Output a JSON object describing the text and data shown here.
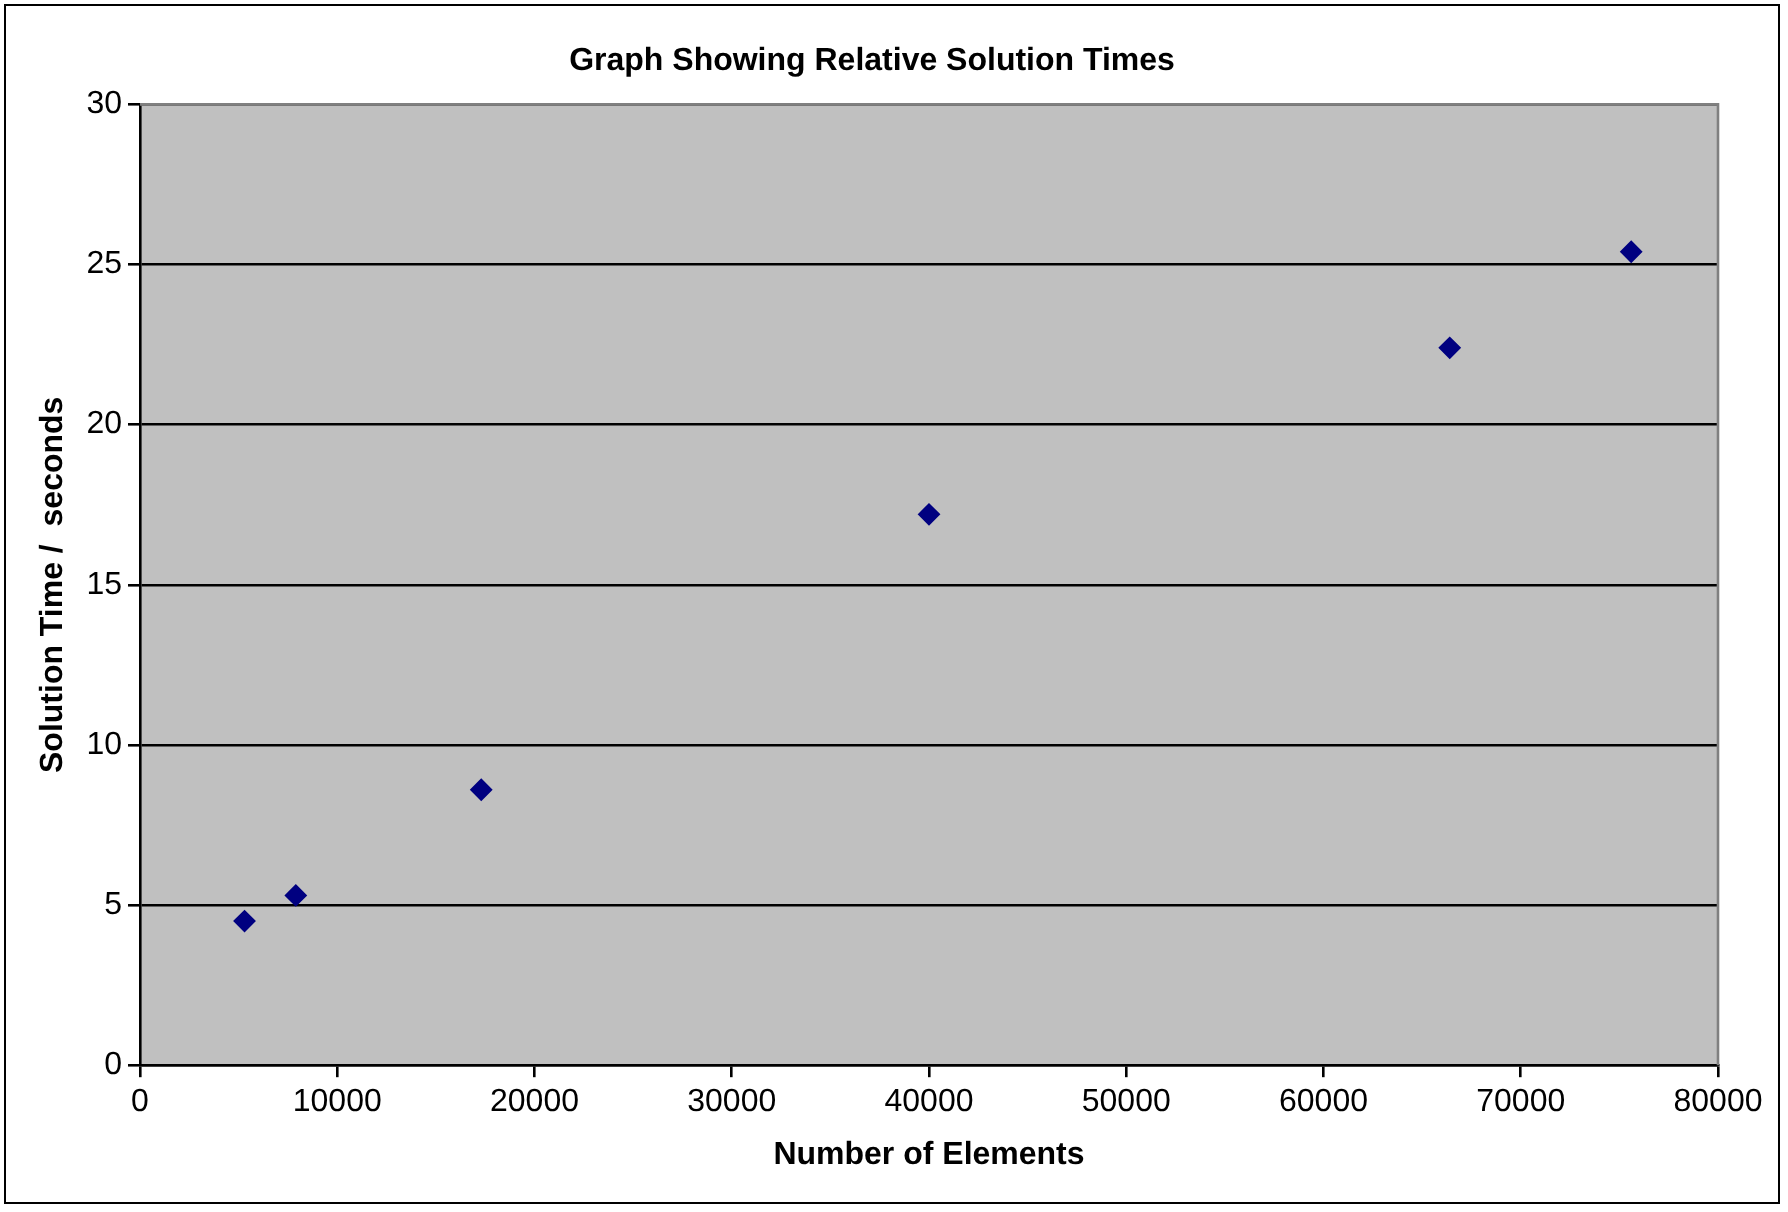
{
  "chart_data": {
    "type": "scatter",
    "title": "Graph Showing Relative Solution Times",
    "xlabel": "Number of Elements",
    "ylabel": "Solution Time /  seconds",
    "x": [
      5300,
      7900,
      17300,
      40000,
      66400,
      75600
    ],
    "series": [
      {
        "color": "#000080",
        "values": [
          4.5,
          5.3,
          8.6,
          17.2,
          22.4,
          25.4
        ]
      }
    ],
    "xlim": [
      0,
      80000
    ],
    "xticks": [
      0,
      10000,
      20000,
      30000,
      40000,
      50000,
      60000,
      70000,
      80000
    ],
    "ylim": [
      0,
      30
    ],
    "yticks": [
      0,
      5,
      10,
      15,
      20,
      25,
      30
    ],
    "grid": "y",
    "legend": false,
    "marker": "diamond"
  }
}
